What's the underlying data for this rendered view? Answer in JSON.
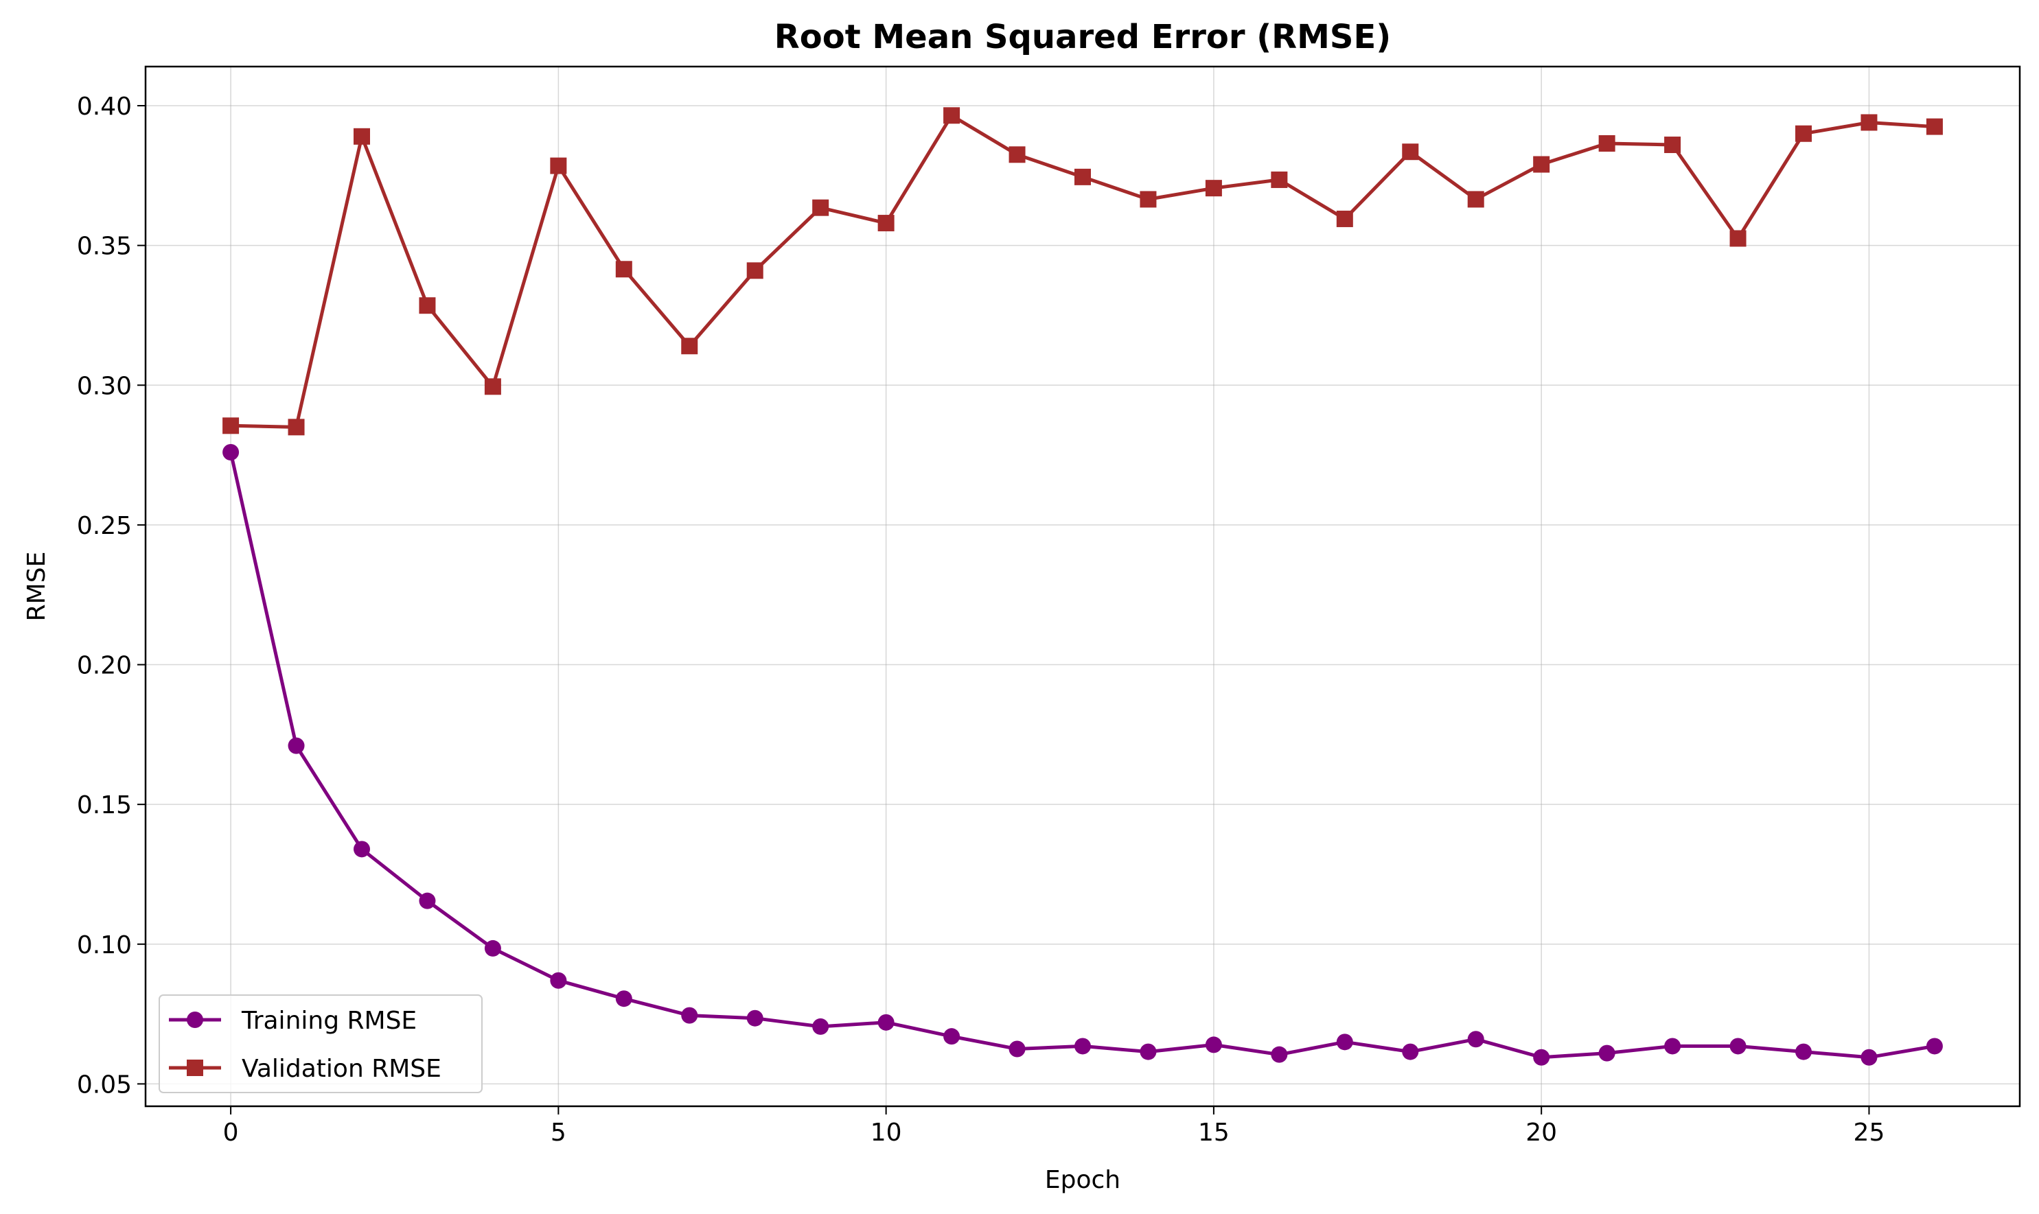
{
  "chart_data": {
    "type": "line",
    "title": "Root Mean Squared Error (RMSE)",
    "xlabel": "Epoch",
    "ylabel": "RMSE",
    "xlim": [
      -1.3,
      27.3
    ],
    "ylim": [
      0.042,
      0.414
    ],
    "xticks": [
      0,
      5,
      10,
      15,
      20,
      25
    ],
    "yticks": [
      0.05,
      0.1,
      0.15,
      0.2,
      0.25,
      0.3,
      0.35,
      0.4
    ],
    "grid": true,
    "legend_position": "lower-left",
    "x": [
      0,
      1,
      2,
      3,
      4,
      5,
      6,
      7,
      8,
      9,
      10,
      11,
      12,
      13,
      14,
      15,
      16,
      17,
      18,
      19,
      20,
      21,
      22,
      23,
      24,
      25,
      26
    ],
    "series": [
      {
        "name": "Training RMSE",
        "color": "#800080",
        "marker": "circle",
        "values": [
          0.276,
          0.171,
          0.134,
          0.1155,
          0.0985,
          0.087,
          0.0805,
          0.0745,
          0.0735,
          0.0705,
          0.072,
          0.067,
          0.0625,
          0.0635,
          0.0615,
          0.064,
          0.0605,
          0.065,
          0.0615,
          0.066,
          0.0595,
          0.061,
          0.0635,
          0.0635,
          0.0615,
          0.0595,
          0.0635
        ]
      },
      {
        "name": "Validation RMSE",
        "color": "#a52a2a",
        "marker": "square",
        "values": [
          0.2855,
          0.285,
          0.389,
          0.3285,
          0.2995,
          0.3785,
          0.3415,
          0.314,
          0.341,
          0.3635,
          0.358,
          0.3965,
          0.3825,
          0.3745,
          0.3665,
          0.3705,
          0.3735,
          0.3595,
          0.3835,
          0.3665,
          0.379,
          0.3865,
          0.386,
          0.3525,
          0.39,
          0.394,
          0.3925
        ]
      }
    ]
  }
}
